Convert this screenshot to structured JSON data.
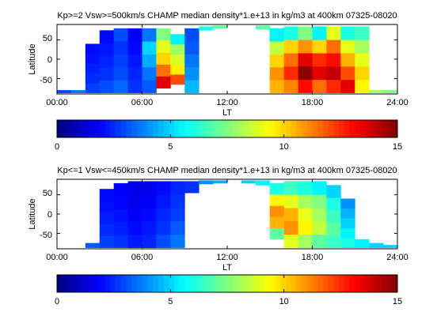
{
  "chart_data": [
    {
      "type": "heatmap",
      "title": "Kp>=2 Vsw>=500km/s CHAMP median density*1.e+13 in kg/m3 at 400km 07325-08020",
      "xlabel": "LT",
      "ylabel": "Latitude",
      "xlim": [
        0,
        24
      ],
      "ylim": [
        -90,
        90
      ],
      "x_ticks": [
        "00:00",
        "06:00",
        "12:00",
        "18:00",
        "24:00"
      ],
      "y_ticks": [
        "50",
        "0",
        "-50"
      ],
      "columns": [
        {
          "lt": 0.5,
          "lat": [
            -87,
            -80
          ],
          "values": [
            2.8
          ]
        },
        {
          "lt": 1.5,
          "lat": [
            -87,
            -80
          ],
          "values": [
            3.6
          ]
        },
        {
          "lt": 2.5,
          "lat": [
            -87,
            40
          ],
          "values": [
            2.8,
            2.5,
            2.3,
            2.1,
            2.0
          ]
        },
        {
          "lt": 3.5,
          "lat": [
            -87,
            75
          ],
          "values": [
            3.0,
            2.6,
            2.4,
            2.2,
            2.0
          ]
        },
        {
          "lt": 4.5,
          "lat": [
            -87,
            80
          ],
          "values": [
            3.4,
            3.0,
            2.8,
            2.6,
            3.0
          ]
        },
        {
          "lt": 5.5,
          "lat": [
            -87,
            80
          ],
          "values": [
            2.6,
            2.4,
            2.2,
            2.0,
            1.8
          ]
        },
        {
          "lt": 6.5,
          "lat": [
            -87,
            80
          ],
          "values": [
            3.2,
            3.6,
            4.4,
            5.0,
            3.6
          ]
        },
        {
          "lt": 7.5,
          "lat": [
            -75,
            80
          ],
          "values": [
            13.5,
            11.5,
            10.0,
            9.0,
            7.5
          ]
        },
        {
          "lt": 8.5,
          "lat": [
            -65,
            65
          ],
          "values": [
            12.0,
            9.6,
            8.8,
            8.0,
            5.5
          ]
        },
        {
          "lt": 9.5,
          "lat": [
            -87,
            80
          ],
          "values": [
            4.6,
            4.0,
            3.6,
            3.2,
            3.0
          ]
        },
        {
          "lt": 10.5,
          "lat": [
            75,
            85
          ],
          "values": [
            6.0
          ]
        },
        {
          "lt": 11.5,
          "lat": [
            80,
            87
          ],
          "values": [
            7.0
          ]
        },
        {
          "lt": 14.5,
          "lat": [
            78,
            87
          ],
          "values": [
            7.0
          ]
        },
        {
          "lt": 15.5,
          "lat": [
            -87,
            80
          ],
          "values": [
            10.5,
            11.0,
            10.0,
            8.5,
            5.5
          ]
        },
        {
          "lt": 16.5,
          "lat": [
            -87,
            85
          ],
          "values": [
            11.2,
            12.5,
            11.5,
            10.0,
            6.0
          ]
        },
        {
          "lt": 17.5,
          "lat": [
            -87,
            85
          ],
          "values": [
            13.0,
            14.8,
            13.5,
            11.0,
            7.5
          ]
        },
        {
          "lt": 18.5,
          "lat": [
            -87,
            85
          ],
          "values": [
            11.5,
            13.5,
            12.5,
            10.0,
            5.5
          ]
        },
        {
          "lt": 19.5,
          "lat": [
            -87,
            85
          ],
          "values": [
            12.5,
            14.0,
            13.0,
            11.5,
            9.0
          ]
        },
        {
          "lt": 20.5,
          "lat": [
            -87,
            85
          ],
          "values": [
            13.5,
            12.0,
            10.5,
            9.0,
            6.0
          ]
        },
        {
          "lt": 21.5,
          "lat": [
            -87,
            85
          ],
          "values": [
            9.5,
            10.0,
            9.0,
            8.0,
            6.5
          ]
        },
        {
          "lt": 22.5,
          "lat": [
            -87,
            -80
          ],
          "values": [
            8.0
          ]
        },
        {
          "lt": 23.5,
          "lat": [
            -87,
            -80
          ],
          "values": [
            7.5
          ]
        }
      ]
    },
    {
      "type": "heatmap",
      "title": "Kp<=1 Vsw<=450km/s CHAMP median density*1.e+13 in kg/m3 at 400km 07325-08020",
      "xlabel": "LT",
      "ylabel": "Latitude",
      "xlim": [
        0,
        24
      ],
      "ylim": [
        -90,
        90
      ],
      "x_ticks": [
        "00:00",
        "06:00",
        "12:00",
        "18:00",
        "24:00"
      ],
      "y_ticks": [
        "50",
        "0",
        "-50"
      ],
      "columns": [
        {
          "lt": 2.5,
          "lat": [
            -87,
            -75
          ],
          "values": [
            3.2
          ]
        },
        {
          "lt": 3.5,
          "lat": [
            -87,
            65
          ],
          "values": [
            2.8,
            2.5,
            2.3,
            2.1,
            2.0
          ]
        },
        {
          "lt": 4.5,
          "lat": [
            -87,
            80
          ],
          "values": [
            2.6,
            2.3,
            2.1,
            1.9,
            1.8
          ]
        },
        {
          "lt": 5.5,
          "lat": [
            -87,
            85
          ],
          "values": [
            2.2,
            2.0,
            1.8,
            1.6,
            1.5
          ]
        },
        {
          "lt": 6.5,
          "lat": [
            -87,
            85
          ],
          "values": [
            2.4,
            2.2,
            2.0,
            1.8,
            1.6
          ]
        },
        {
          "lt": 7.5,
          "lat": [
            -87,
            85
          ],
          "values": [
            3.0,
            2.6,
            2.4,
            2.2,
            2.0
          ]
        },
        {
          "lt": 8.5,
          "lat": [
            -87,
            85
          ],
          "values": [
            3.6,
            3.2,
            2.8,
            2.6,
            2.4
          ]
        },
        {
          "lt": 9.5,
          "lat": [
            55,
            85
          ],
          "values": [
            2.6
          ]
        },
        {
          "lt": 10.5,
          "lat": [
            78,
            87
          ],
          "values": [
            4.0
          ]
        },
        {
          "lt": 11.5,
          "lat": [
            80,
            87
          ],
          "values": [
            4.5
          ]
        },
        {
          "lt": 13.5,
          "lat": [
            80,
            87
          ],
          "values": [
            5.0
          ]
        },
        {
          "lt": 14.5,
          "lat": [
            75,
            87
          ],
          "values": [
            5.5
          ]
        },
        {
          "lt": 15.5,
          "lat": [
            -65,
            80
          ],
          "values": [
            7.0,
            10.5,
            11.0,
            9.5,
            6.0
          ]
        },
        {
          "lt": 16.5,
          "lat": [
            -87,
            85
          ],
          "values": [
            9.0,
            11.0,
            10.5,
            9.0,
            6.5
          ]
        },
        {
          "lt": 17.5,
          "lat": [
            -87,
            85
          ],
          "values": [
            8.0,
            9.5,
            9.0,
            8.0,
            6.0
          ]
        },
        {
          "lt": 18.5,
          "lat": [
            -87,
            85
          ],
          "values": [
            7.0,
            8.5,
            8.0,
            7.5,
            5.5
          ]
        },
        {
          "lt": 19.5,
          "lat": [
            -87,
            75
          ],
          "values": [
            6.5,
            7.0,
            6.5,
            6.0,
            5.0
          ]
        },
        {
          "lt": 20.5,
          "lat": [
            -87,
            40
          ],
          "values": [
            6.0,
            5.5,
            5.0,
            4.5,
            4.0
          ]
        },
        {
          "lt": 21.5,
          "lat": [
            -87,
            -65
          ],
          "values": [
            5.5
          ]
        },
        {
          "lt": 22.5,
          "lat": [
            -87,
            -75
          ],
          "values": [
            5.0
          ]
        },
        {
          "lt": 23.5,
          "lat": [
            -87,
            -80
          ],
          "values": [
            5.0
          ]
        }
      ]
    }
  ],
  "colorbars": [
    {
      "min": 0,
      "max": 15,
      "ticks": [
        0,
        5,
        10,
        15
      ],
      "colormap": "jet"
    },
    {
      "min": 0,
      "max": 15,
      "ticks": [
        0,
        5,
        10,
        15
      ],
      "colormap": "jet"
    }
  ]
}
